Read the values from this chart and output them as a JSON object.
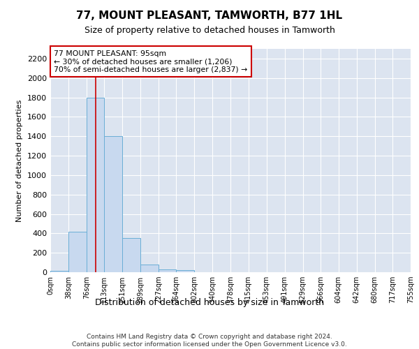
{
  "title": "77, MOUNT PLEASANT, TAMWORTH, B77 1HL",
  "subtitle": "Size of property relative to detached houses in Tamworth",
  "xlabel": "Distribution of detached houses by size in Tamworth",
  "ylabel": "Number of detached properties",
  "footer_line1": "Contains HM Land Registry data © Crown copyright and database right 2024.",
  "footer_line2": "Contains public sector information licensed under the Open Government Licence v3.0.",
  "annotation_title": "77 MOUNT PLEASANT: 95sqm",
  "annotation_line1": "← 30% of detached houses are smaller (1,206)",
  "annotation_line2": "70% of semi-detached houses are larger (2,837) →",
  "property_size": 95,
  "bin_edges": [
    0,
    38,
    76,
    113,
    151,
    189,
    227,
    264,
    302,
    340,
    378,
    415,
    453,
    491,
    529,
    566,
    604,
    642,
    680,
    717,
    755
  ],
  "bar_values": [
    15,
    420,
    1800,
    1400,
    350,
    80,
    30,
    20,
    0,
    0,
    0,
    0,
    0,
    0,
    0,
    0,
    0,
    0,
    0,
    0
  ],
  "bar_color": "#c8d9ef",
  "bar_edge_color": "#6aaed6",
  "vline_color": "#cc0000",
  "bg_color": "#dce4f0",
  "grid_color": "#ffffff",
  "annotation_box_color": "#cc0000",
  "ylim": [
    0,
    2300
  ],
  "yticks": [
    0,
    200,
    400,
    600,
    800,
    1000,
    1200,
    1400,
    1600,
    1800,
    2000,
    2200
  ]
}
